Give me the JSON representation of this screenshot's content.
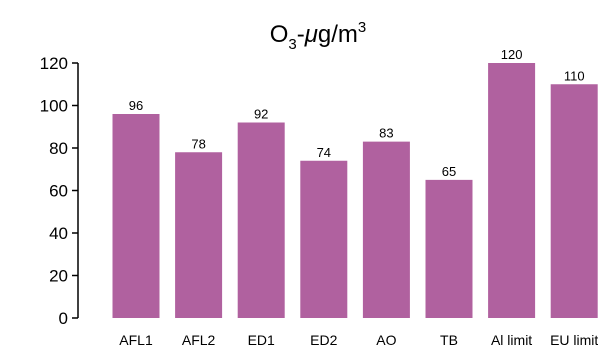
{
  "chart_data": {
    "type": "bar",
    "title": {
      "base": "O",
      "sub": "3",
      "mid": "-",
      "unit_mu": "μ",
      "unit_rest": "g/m",
      "sup": "3"
    },
    "categories": [
      "AFL1",
      "AFL2",
      "ED1",
      "ED2",
      "AO",
      "TB",
      "Al limit",
      "EU limit"
    ],
    "values": [
      96,
      78,
      92,
      74,
      83,
      65,
      120,
      110
    ],
    "ylim": [
      0,
      120
    ],
    "yticks": [
      0,
      20,
      40,
      60,
      80,
      100,
      120
    ],
    "xlabel": "",
    "ylabel": "",
    "grid": false,
    "legend": "none",
    "bar_color": "#b0619f"
  }
}
